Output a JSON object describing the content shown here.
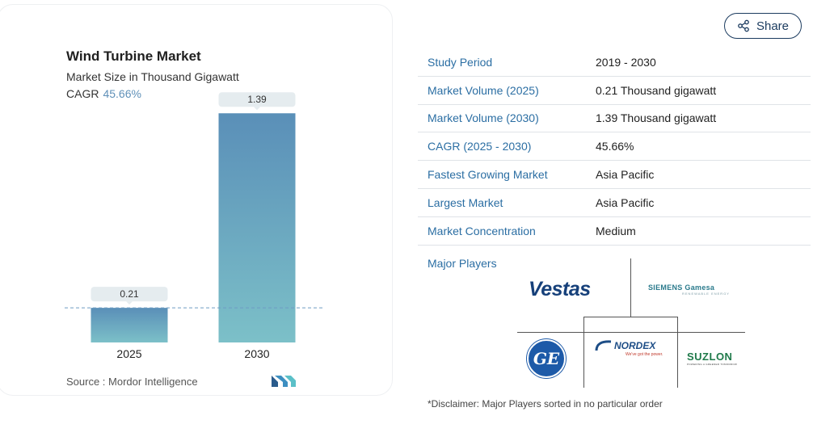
{
  "chart_data": {
    "type": "bar",
    "title": "Wind Turbine Market",
    "subtitle": "Market Size in Thousand Gigawatt",
    "cagr_label": "CAGR",
    "cagr_value": "45.66%",
    "categories": [
      "2025",
      "2030"
    ],
    "values": [
      0.21,
      1.39
    ],
    "value_labels": [
      "0.21",
      "1.39"
    ],
    "ylim": [
      0,
      1.45
    ],
    "grid": false,
    "source": "Source :  Mordor Intelligence"
  },
  "colors": {
    "bar_top": "#5a8fb8",
    "bar_bottom": "#7cc0c8",
    "label_bg": "#e5ecef",
    "accent_blue": "#2b6ea3",
    "dash": "#6f9cc4"
  },
  "share": {
    "label": "Share",
    "icon": "share-icon"
  },
  "info": [
    {
      "key": "Study Period",
      "value": "2019 - 2030"
    },
    {
      "key": "Market Volume (2025)",
      "value": "0.21 Thousand gigawatt"
    },
    {
      "key": "Market Volume (2030)",
      "value": "1.39 Thousand gigawatt"
    },
    {
      "key": "CAGR (2025 - 2030)",
      "value": "45.66%"
    },
    {
      "key": "Fastest Growing Market",
      "value": "Asia Pacific"
    },
    {
      "key": "Largest Market",
      "value": "Asia Pacific"
    },
    {
      "key": "Market Concentration",
      "value": "Medium"
    }
  ],
  "players": {
    "label": "Major Players",
    "vestas": "Vestas",
    "siemens": "SIEMENS Gamesa",
    "siemens_tag": "RENEWABLE ENERGY",
    "ge": "GE",
    "nordex": "NORDEX",
    "nordex_tag": "We've got the power.",
    "suzlon": "SUZLON",
    "suzlon_tag": "POWERING A GREENER TOMORROW"
  },
  "disclaimer": "*Disclaimer: Major Players sorted in no particular order"
}
